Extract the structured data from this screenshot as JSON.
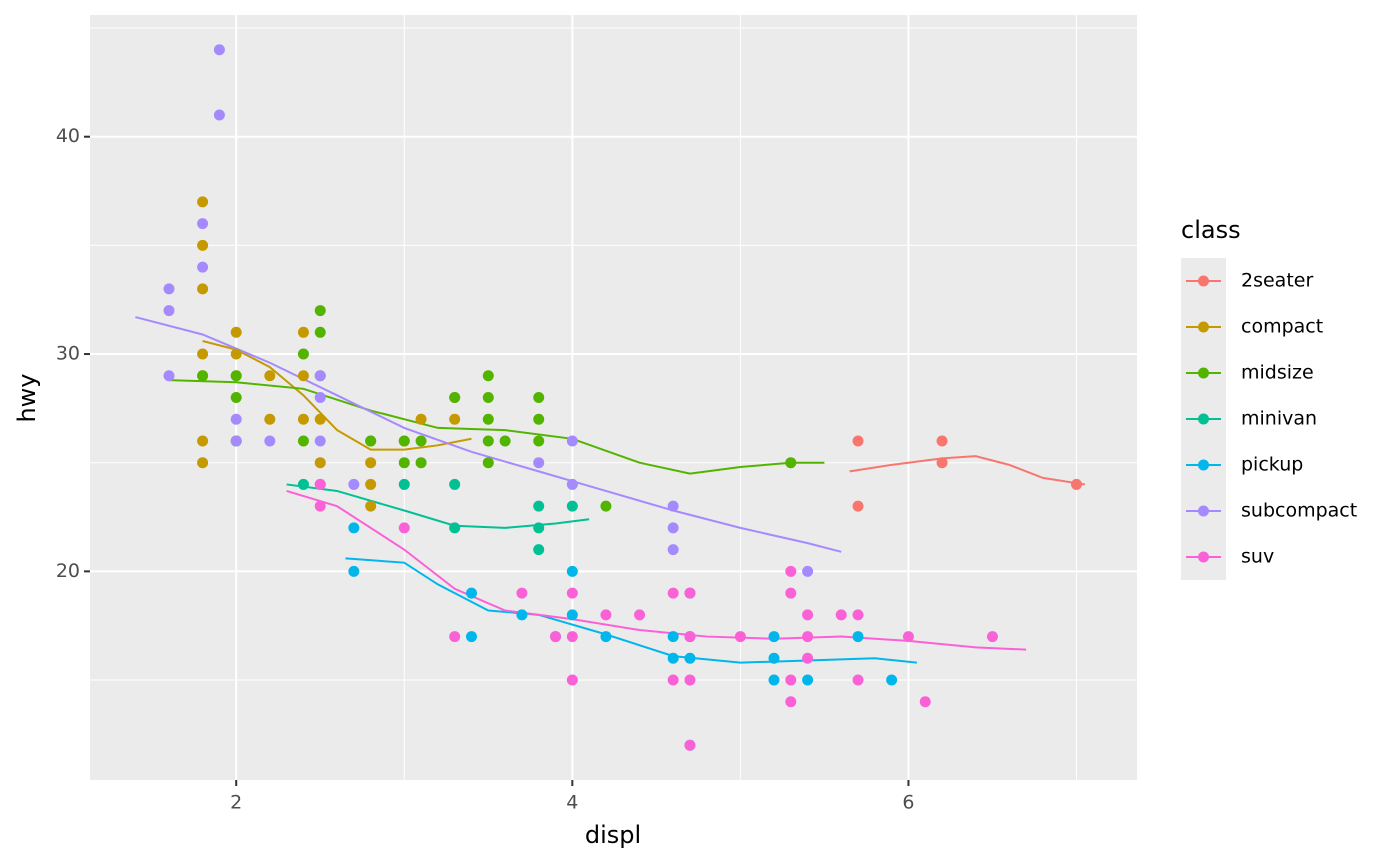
{
  "chart_data": {
    "type": "scatter",
    "x_label": "displ",
    "y_label": "hwy",
    "legend_title": "class",
    "legend": "right",
    "grid": true,
    "xlim": [
      1.13,
      7.36
    ],
    "ylim": [
      10.4,
      45.6
    ],
    "xticks": [
      2,
      4,
      6
    ],
    "yticks": [
      20,
      30,
      40
    ],
    "minor_xticks": [
      3,
      5,
      7
    ],
    "minor_yticks": [
      15,
      25,
      35,
      45
    ],
    "series": [
      {
        "name": "2seater",
        "color": "#F8766D",
        "x": [
          5.7,
          5.7,
          6.2,
          6.2,
          7.0
        ],
        "values": [
          26,
          23,
          26,
          25,
          24
        ],
        "smooth_x": [
          5.65,
          5.9,
          6.2,
          6.4,
          6.6,
          6.8,
          7.05
        ],
        "smooth_values": [
          24.6,
          24.9,
          25.2,
          25.3,
          24.9,
          24.3,
          24.0
        ]
      },
      {
        "name": "compact",
        "color": "#C49A00",
        "x": [
          1.8,
          1.8,
          1.8,
          1.8,
          1.8,
          1.8,
          1.8,
          2.0,
          2.0,
          2.0,
          2.0,
          2.2,
          2.2,
          2.4,
          2.4,
          2.4,
          2.5,
          2.5,
          2.8,
          2.8,
          2.8,
          2.8,
          3.0,
          3.1,
          3.3,
          3.3
        ],
        "values": [
          37,
          35,
          33,
          30,
          29,
          26,
          25,
          31,
          30,
          29,
          26,
          29,
          27,
          31,
          29,
          27,
          27,
          25,
          26,
          25,
          24,
          23,
          26,
          27,
          28,
          27
        ],
        "smooth_x": [
          1.8,
          2.0,
          2.2,
          2.4,
          2.6,
          2.8,
          3.0,
          3.2,
          3.4
        ],
        "smooth_values": [
          30.6,
          30.2,
          29.4,
          28.1,
          26.5,
          25.6,
          25.6,
          25.8,
          26.1
        ]
      },
      {
        "name": "midsize",
        "color": "#53B400",
        "x": [
          1.8,
          2.0,
          2.0,
          2.0,
          2.4,
          2.4,
          2.5,
          2.5,
          2.5,
          2.8,
          3.0,
          3.0,
          3.1,
          3.1,
          3.3,
          3.5,
          3.5,
          3.5,
          3.5,
          3.5,
          3.6,
          3.8,
          3.8,
          3.8,
          4.2,
          5.3
        ],
        "values": [
          29,
          29,
          28,
          26,
          30,
          26,
          32,
          31,
          29,
          26,
          26,
          25,
          26,
          25,
          28,
          29,
          28,
          27,
          26,
          25,
          26,
          28,
          27,
          26,
          23,
          25
        ],
        "smooth_x": [
          1.6,
          2.0,
          2.4,
          2.8,
          3.2,
          3.6,
          4.0,
          4.4,
          4.7,
          5.0,
          5.3,
          5.5
        ],
        "smooth_values": [
          28.8,
          28.7,
          28.4,
          27.4,
          26.6,
          26.5,
          26.1,
          25.0,
          24.5,
          24.8,
          25.0,
          25.0
        ]
      },
      {
        "name": "minivan",
        "color": "#00C094",
        "x": [
          2.4,
          3.0,
          3.3,
          3.3,
          3.8,
          3.8,
          3.8,
          4.0
        ],
        "values": [
          24,
          24,
          24,
          22,
          23,
          22,
          21,
          23
        ],
        "smooth_x": [
          2.3,
          2.6,
          3.0,
          3.3,
          3.6,
          3.9,
          4.1
        ],
        "smooth_values": [
          24.0,
          23.7,
          22.8,
          22.1,
          22.0,
          22.2,
          22.4
        ]
      },
      {
        "name": "pickup",
        "color": "#00B6EB",
        "x": [
          2.7,
          2.7,
          3.4,
          3.4,
          3.7,
          3.9,
          4.0,
          4.0,
          4.2,
          4.6,
          4.6,
          4.7,
          4.7,
          4.7,
          4.7,
          5.2,
          5.2,
          5.2,
          5.4,
          5.7,
          5.9
        ],
        "values": [
          22,
          20,
          19,
          17,
          18,
          17,
          20,
          18,
          17,
          17,
          16,
          19,
          17,
          16,
          12,
          17,
          16,
          15,
          15,
          17,
          15
        ],
        "smooth_x": [
          2.65,
          3.0,
          3.2,
          3.5,
          3.8,
          4.2,
          4.6,
          5.0,
          5.4,
          5.8,
          6.05
        ],
        "smooth_values": [
          20.6,
          20.4,
          19.4,
          18.2,
          18.0,
          17.1,
          16.1,
          15.8,
          15.9,
          16.0,
          15.8
        ]
      },
      {
        "name": "subcompact",
        "color": "#A58AFF",
        "x": [
          1.6,
          1.6,
          1.6,
          1.8,
          1.8,
          1.9,
          1.9,
          2.0,
          2.0,
          2.2,
          2.5,
          2.5,
          2.5,
          2.5,
          2.7,
          3.8,
          4.0,
          4.0,
          4.6,
          4.6,
          4.6,
          5.4
        ],
        "values": [
          33,
          32,
          29,
          36,
          34,
          44,
          41,
          27,
          26,
          26,
          29,
          28,
          26,
          24,
          24,
          25,
          26,
          24,
          23,
          22,
          21,
          20
        ],
        "smooth_x": [
          1.4,
          1.8,
          2.2,
          2.6,
          3.0,
          3.4,
          3.8,
          4.2,
          4.6,
          5.0,
          5.4,
          5.6
        ],
        "smooth_values": [
          31.7,
          30.9,
          29.6,
          28.1,
          26.6,
          25.5,
          24.6,
          23.7,
          22.8,
          22.0,
          21.3,
          20.9
        ]
      },
      {
        "name": "suv",
        "color": "#FB61D7",
        "x": [
          2.5,
          2.5,
          3.0,
          3.3,
          3.7,
          3.9,
          4.0,
          4.0,
          4.0,
          4.2,
          4.4,
          4.6,
          4.6,
          4.7,
          4.7,
          4.7,
          4.7,
          5.0,
          5.3,
          5.3,
          5.3,
          5.3,
          5.4,
          5.4,
          5.4,
          5.6,
          5.7,
          5.7,
          6.0,
          6.1,
          6.5
        ],
        "values": [
          24,
          23,
          22,
          17,
          19,
          17,
          19,
          17,
          15,
          18,
          18,
          19,
          15,
          19,
          17,
          15,
          12,
          17,
          20,
          19,
          15,
          14,
          18,
          17,
          16,
          18,
          18,
          15,
          17,
          14,
          17
        ],
        "smooth_x": [
          2.3,
          2.6,
          3.0,
          3.3,
          3.6,
          4.0,
          4.4,
          4.8,
          5.2,
          5.6,
          6.0,
          6.4,
          6.7
        ],
        "smooth_values": [
          23.7,
          23.0,
          21.0,
          19.2,
          18.2,
          17.8,
          17.3,
          17.0,
          16.9,
          17.0,
          16.8,
          16.5,
          16.4
        ]
      }
    ]
  }
}
